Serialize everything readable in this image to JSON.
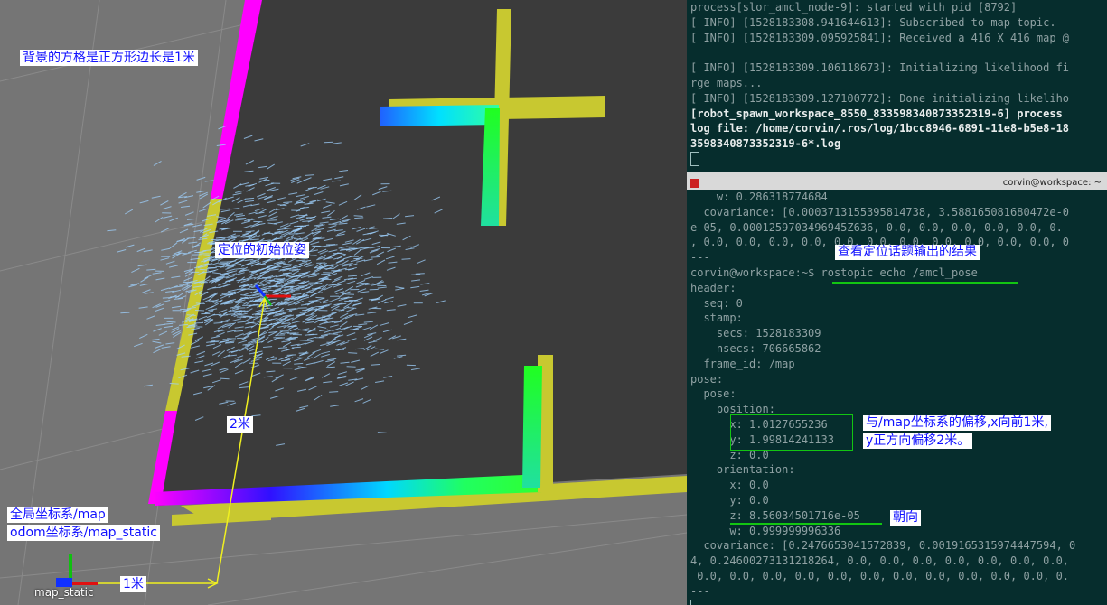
{
  "rviz": {
    "annotations": {
      "grid_note": "背景的方格是正方形边长是1米",
      "initial_pose": "定位的初始位姿",
      "two_meters": "2米",
      "global_frame": "全局坐标系/map",
      "odom_frame": "odom坐标系/map_static",
      "one_meter": "1米",
      "frame_label": "map_static"
    },
    "colors": {
      "wall": "#c4c41a",
      "laser_magenta": "#ff00ff",
      "particles": "#9fd2ff",
      "floor": "#3a3a3a",
      "background": "#757575"
    }
  },
  "terminal_top": {
    "lines": [
      "process[slor_amcl_node-9]: started with pid [8792]",
      "[ INFO] [1528183308.941644613]: Subscribed to map topic.",
      "[ INFO] [1528183309.095925841]: Received a 416 X 416 map @",
      "",
      "[ INFO] [1528183309.106118673]: Initializing likelihood fi",
      "rge maps...",
      "[ INFO] [1528183309.127100772]: Done initializing likeliho",
      "[robot_spawn_workspace_8550_833598340873352319-6] process",
      "log file: /home/corvin/.ros/log/1bcc8946-6891-11e8-b5e8-18",
      "3598340873352319-6*.log"
    ]
  },
  "terminal_bottom": {
    "title": "corvin@workspace: ~",
    "lines": [
      "    w: 0.286318774684",
      "  covariance: [0.0003713155395814738, 3.588165081680472e-0",
      "e-05, 0.0001259703496945Z636, 0.0, 0.0, 0.0, 0.0, 0.0, 0.",
      ", 0.0, 0.0, 0.0, 0.0, 0.0, 0.0, 0.0, 0.0, 0.0, 0.0, 0.0, 0",
      "---",
      "corvin@workspace:~$ rostopic echo /amcl_pose",
      "header:",
      "  seq: 0",
      "  stamp:",
      "    secs: 1528183309",
      "    nsecs: 706665862",
      "  frame_id: /map",
      "pose:",
      "  pose:",
      "    position:",
      "      x: 1.0127655236",
      "      y: 1.99814241133",
      "      z: 0.0",
      "    orientation:",
      "      x: 0.0",
      "      y: 0.0",
      "      z: 8.56034501716e-05",
      "      w: 0.999999996336",
      "  covariance: [0.2476653041572839, 0.0019165315974447594, 0",
      "4, 0.24600273131218264, 0.0, 0.0, 0.0, 0.0, 0.0, 0.0, 0.0,",
      " 0.0, 0.0, 0.0, 0.0, 0.0, 0.0, 0.0, 0.0, 0.0, 0.0, 0.0, 0.",
      "---"
    ],
    "annotations": {
      "view_result": "查看定位话题输出的结果",
      "offset_line1": "与/map坐标系的偏移,x向前1米,",
      "offset_line2": "y正方向偏移2米。",
      "heading": "朝向"
    }
  }
}
